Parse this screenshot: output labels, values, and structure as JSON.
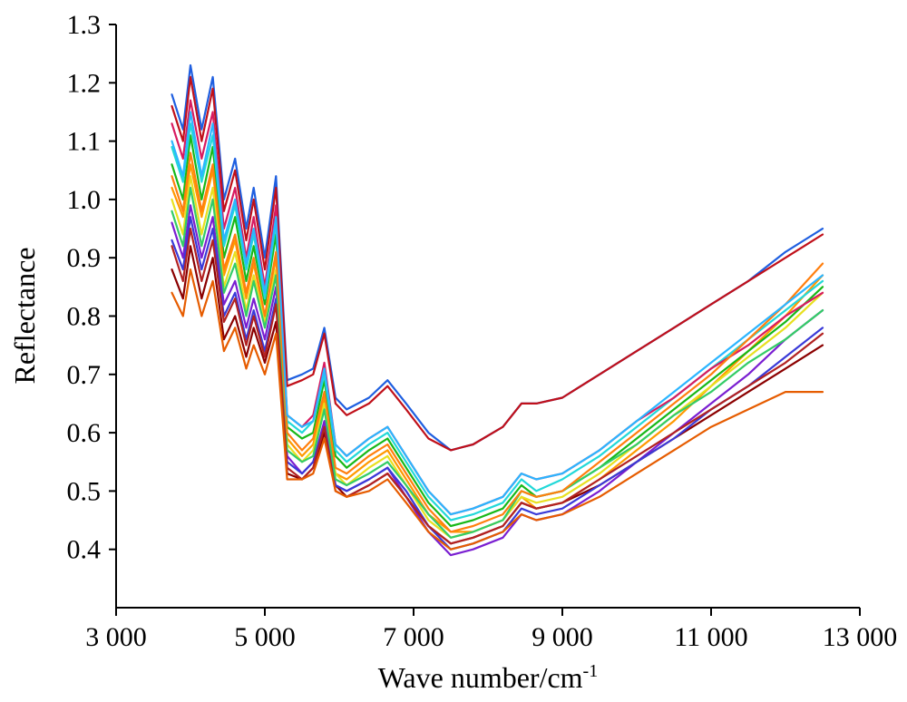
{
  "chart_data": {
    "type": "line",
    "title": "",
    "xlabel": "Wave number/cm",
    "xlabel_sup": "-1",
    "ylabel": "Reflectance",
    "xlim": [
      3000,
      13000
    ],
    "ylim": [
      0.3,
      1.3
    ],
    "x_ticks": [
      3000,
      5000,
      7000,
      9000,
      11000,
      13000
    ],
    "x_tick_labels": [
      "3 000",
      "5 000",
      "7 000",
      "9 000",
      "11 000",
      "13 000"
    ],
    "y_ticks": [
      0.4,
      0.5,
      0.6,
      0.7,
      0.8,
      0.9,
      1.0,
      1.1,
      1.2,
      1.3
    ],
    "y_tick_labels": [
      "0.4",
      "0.5",
      "0.6",
      "0.7",
      "0.8",
      "0.9",
      "1.0",
      "1.1",
      "1.2",
      "1.3"
    ],
    "grid": false,
    "legend": "none",
    "x": [
      3750,
      3900,
      4000,
      4150,
      4300,
      4450,
      4600,
      4750,
      4850,
      5000,
      5150,
      5300,
      5500,
      5650,
      5800,
      5950,
      6100,
      6400,
      6650,
      6900,
      7200,
      7500,
      7800,
      8200,
      8450,
      8650,
      9000,
      9500,
      10000,
      10500,
      11000,
      11500,
      12000,
      12500
    ],
    "series": [
      {
        "color": "#1f5fe0",
        "values": [
          1.18,
          1.12,
          1.23,
          1.12,
          1.21,
          1.0,
          1.07,
          0.95,
          1.02,
          0.9,
          1.04,
          0.69,
          0.7,
          0.71,
          0.78,
          0.66,
          0.64,
          0.66,
          0.69,
          0.65,
          0.6,
          0.57,
          0.58,
          0.61,
          0.65,
          0.65,
          0.66,
          0.7,
          0.74,
          0.78,
          0.82,
          0.86,
          0.91,
          0.95
        ]
      },
      {
        "color": "#c0101a",
        "values": [
          1.16,
          1.1,
          1.21,
          1.1,
          1.19,
          0.98,
          1.05,
          0.93,
          1.0,
          0.88,
          1.02,
          0.68,
          0.69,
          0.7,
          0.77,
          0.65,
          0.63,
          0.65,
          0.68,
          0.64,
          0.59,
          0.57,
          0.58,
          0.61,
          0.65,
          0.65,
          0.66,
          0.7,
          0.74,
          0.78,
          0.82,
          0.86,
          0.9,
          0.94
        ]
      },
      {
        "color": "#ff9900",
        "values": [
          1.02,
          0.97,
          1.06,
          0.97,
          1.05,
          0.87,
          0.93,
          0.83,
          0.89,
          0.8,
          0.9,
          0.59,
          0.56,
          0.58,
          0.66,
          0.53,
          0.52,
          0.55,
          0.57,
          0.52,
          0.46,
          0.43,
          0.43,
          0.45,
          0.49,
          0.47,
          0.48,
          0.52,
          0.57,
          0.62,
          0.68,
          0.74,
          0.8,
          0.87
        ]
      },
      {
        "color": "#18b818",
        "values": [
          1.06,
          1.0,
          1.11,
          1.0,
          1.09,
          0.9,
          0.97,
          0.86,
          0.92,
          0.82,
          0.94,
          0.61,
          0.59,
          0.6,
          0.69,
          0.56,
          0.54,
          0.57,
          0.59,
          0.54,
          0.48,
          0.44,
          0.45,
          0.47,
          0.51,
          0.49,
          0.5,
          0.54,
          0.59,
          0.64,
          0.69,
          0.74,
          0.79,
          0.85
        ]
      },
      {
        "color": "#22d8d8",
        "values": [
          1.09,
          1.03,
          1.13,
          1.03,
          1.11,
          0.92,
          0.99,
          0.88,
          0.94,
          0.83,
          0.96,
          0.62,
          0.6,
          0.62,
          0.7,
          0.57,
          0.55,
          0.58,
          0.6,
          0.55,
          0.49,
          0.45,
          0.46,
          0.48,
          0.52,
          0.5,
          0.52,
          0.56,
          0.61,
          0.66,
          0.71,
          0.76,
          0.81,
          0.86
        ]
      },
      {
        "color": "#7a1fd1",
        "values": [
          0.96,
          0.9,
          0.99,
          0.9,
          0.97,
          0.82,
          0.86,
          0.78,
          0.83,
          0.76,
          0.85,
          0.56,
          0.53,
          0.55,
          0.62,
          0.51,
          0.5,
          0.52,
          0.54,
          0.49,
          0.43,
          0.39,
          0.4,
          0.42,
          0.46,
          0.45,
          0.46,
          0.5,
          0.55,
          0.6,
          0.65,
          0.7,
          0.76,
          0.81
        ]
      },
      {
        "color": "#8b0000",
        "values": [
          0.88,
          0.83,
          0.92,
          0.83,
          0.9,
          0.76,
          0.8,
          0.73,
          0.78,
          0.72,
          0.79,
          0.53,
          0.52,
          0.54,
          0.6,
          0.51,
          0.49,
          0.51,
          0.53,
          0.49,
          0.44,
          0.41,
          0.42,
          0.44,
          0.48,
          0.47,
          0.48,
          0.51,
          0.55,
          0.59,
          0.63,
          0.67,
          0.71,
          0.75
        ]
      },
      {
        "color": "#e8e020",
        "values": [
          1.0,
          0.94,
          1.04,
          0.94,
          1.02,
          0.85,
          0.91,
          0.81,
          0.87,
          0.79,
          0.88,
          0.58,
          0.55,
          0.57,
          0.65,
          0.53,
          0.51,
          0.54,
          0.56,
          0.51,
          0.45,
          0.42,
          0.43,
          0.45,
          0.49,
          0.48,
          0.49,
          0.53,
          0.58,
          0.63,
          0.68,
          0.73,
          0.78,
          0.84
        ]
      },
      {
        "color": "#3a3ad8",
        "values": [
          0.93,
          0.88,
          0.97,
          0.88,
          0.95,
          0.8,
          0.84,
          0.76,
          0.81,
          0.74,
          0.83,
          0.55,
          0.53,
          0.55,
          0.61,
          0.51,
          0.5,
          0.52,
          0.54,
          0.5,
          0.44,
          0.4,
          0.41,
          0.43,
          0.47,
          0.46,
          0.47,
          0.51,
          0.55,
          0.59,
          0.64,
          0.68,
          0.73,
          0.78
        ]
      },
      {
        "color": "#d81b60",
        "values": [
          1.13,
          1.07,
          1.17,
          1.07,
          1.15,
          0.95,
          1.02,
          0.9,
          0.97,
          0.85,
          0.99,
          0.63,
          0.61,
          0.63,
          0.72,
          0.58,
          0.56,
          0.59,
          0.61,
          0.56,
          0.5,
          0.46,
          0.47,
          0.49,
          0.53,
          0.52,
          0.53,
          0.57,
          0.62,
          0.66,
          0.71,
          0.75,
          0.8,
          0.84
        ]
      },
      {
        "color": "#33cc66",
        "values": [
          0.98,
          0.92,
          1.02,
          0.92,
          1.0,
          0.84,
          0.89,
          0.8,
          0.86,
          0.78,
          0.87,
          0.57,
          0.55,
          0.56,
          0.64,
          0.52,
          0.51,
          0.53,
          0.55,
          0.51,
          0.46,
          0.42,
          0.43,
          0.45,
          0.5,
          0.49,
          0.5,
          0.54,
          0.58,
          0.63,
          0.67,
          0.72,
          0.76,
          0.81
        ]
      },
      {
        "color": "#ff7f0e",
        "values": [
          1.04,
          0.98,
          1.08,
          0.98,
          1.06,
          0.88,
          0.94,
          0.84,
          0.9,
          0.8,
          0.91,
          0.6,
          0.57,
          0.59,
          0.67,
          0.54,
          0.53,
          0.56,
          0.58,
          0.53,
          0.47,
          0.43,
          0.44,
          0.46,
          0.5,
          0.49,
          0.5,
          0.55,
          0.6,
          0.65,
          0.7,
          0.76,
          0.82,
          0.89
        ]
      },
      {
        "color": "#b22222",
        "values": [
          0.92,
          0.86,
          0.95,
          0.86,
          0.93,
          0.79,
          0.83,
          0.75,
          0.8,
          0.73,
          0.82,
          0.54,
          0.52,
          0.54,
          0.61,
          0.5,
          0.49,
          0.51,
          0.53,
          0.49,
          0.44,
          0.41,
          0.42,
          0.44,
          0.48,
          0.47,
          0.48,
          0.52,
          0.56,
          0.6,
          0.64,
          0.68,
          0.72,
          0.77
        ]
      },
      {
        "color": "#2bb5ff",
        "values": [
          1.1,
          1.04,
          1.15,
          1.04,
          1.13,
          0.93,
          1.0,
          0.89,
          0.95,
          0.84,
          0.97,
          0.63,
          0.61,
          0.62,
          0.71,
          0.58,
          0.56,
          0.59,
          0.61,
          0.56,
          0.5,
          0.46,
          0.47,
          0.49,
          0.53,
          0.52,
          0.53,
          0.57,
          0.62,
          0.67,
          0.72,
          0.77,
          0.82,
          0.87
        ]
      },
      {
        "color": "#e65c00",
        "values": [
          0.84,
          0.8,
          0.88,
          0.8,
          0.86,
          0.74,
          0.78,
          0.71,
          0.75,
          0.7,
          0.77,
          0.52,
          0.52,
          0.53,
          0.59,
          0.5,
          0.49,
          0.5,
          0.52,
          0.48,
          0.43,
          0.4,
          0.41,
          0.43,
          0.46,
          0.45,
          0.46,
          0.49,
          0.53,
          0.57,
          0.61,
          0.64,
          0.67,
          0.67
        ]
      }
    ]
  }
}
